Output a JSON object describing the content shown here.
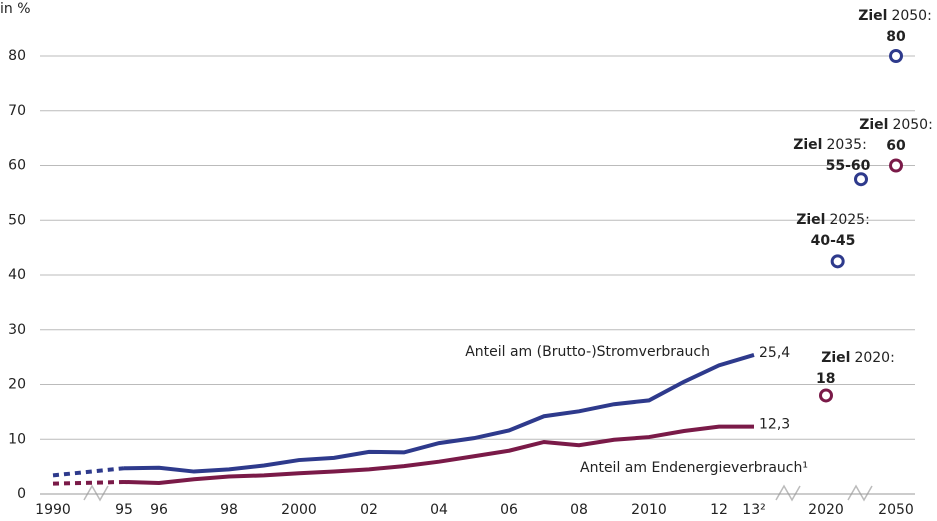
{
  "chart_data": {
    "type": "line",
    "y_label": "in %",
    "categories": [
      "1990",
      "95",
      "96",
      null,
      "98",
      null,
      "2000",
      null,
      "02",
      null,
      "04",
      null,
      "06",
      null,
      "08",
      null,
      "2010",
      null,
      "12",
      "13²"
    ],
    "series": [
      {
        "name": "Anteil am (Brutto-)Stromverbrauch",
        "color": "#2e3a8c",
        "values": [
          3.4,
          4.7,
          4.8,
          4.1,
          4.5,
          5.2,
          6.2,
          6.6,
          7.7,
          7.6,
          9.3,
          10.2,
          11.6,
          14.2,
          15.1,
          16.4,
          17.1,
          20.5,
          23.5,
          25.4
        ],
        "end_label": "25,4"
      },
      {
        "name": "Anteil am Endenergieverbrauch¹",
        "color": "#7a1a48",
        "values": [
          1.9,
          2.2,
          2.0,
          2.7,
          3.2,
          3.4,
          3.8,
          4.1,
          4.5,
          5.1,
          5.9,
          6.9,
          7.9,
          9.5,
          8.9,
          9.9,
          10.4,
          11.5,
          12.3,
          12.3
        ],
        "end_label": "12,3"
      }
    ],
    "target_ticks": [
      {
        "value": 2020,
        "label": "2020"
      },
      {
        "value": 2050,
        "label": "2050"
      }
    ],
    "targets": [
      {
        "word": "Ziel",
        "year_text": "2020:",
        "value_text": "18",
        "year": 2020,
        "value": 18,
        "color": "#7a1a48"
      },
      {
        "word": "Ziel",
        "year_text": "2025:",
        "value_text": "40-45",
        "year": 2025,
        "value": 42.5,
        "color": "#2e3a8c"
      },
      {
        "word": "Ziel",
        "year_text": "2035:",
        "value_text": "55-60",
        "year": 2035,
        "value": 57.5,
        "color": "#2e3a8c"
      },
      {
        "word": "Ziel",
        "year_text": "2050:",
        "value_text": "60",
        "year": 2050,
        "value": 60,
        "color": "#7a1a48"
      },
      {
        "word": "Ziel",
        "year_text": "2050:",
        "value_text": "80",
        "year": 2050,
        "value": 80,
        "color": "#2e3a8c"
      }
    ],
    "ylim": [
      0,
      80
    ],
    "yticks": [
      0,
      10,
      20,
      30,
      40,
      50,
      60,
      70,
      80
    ],
    "grid": true
  }
}
